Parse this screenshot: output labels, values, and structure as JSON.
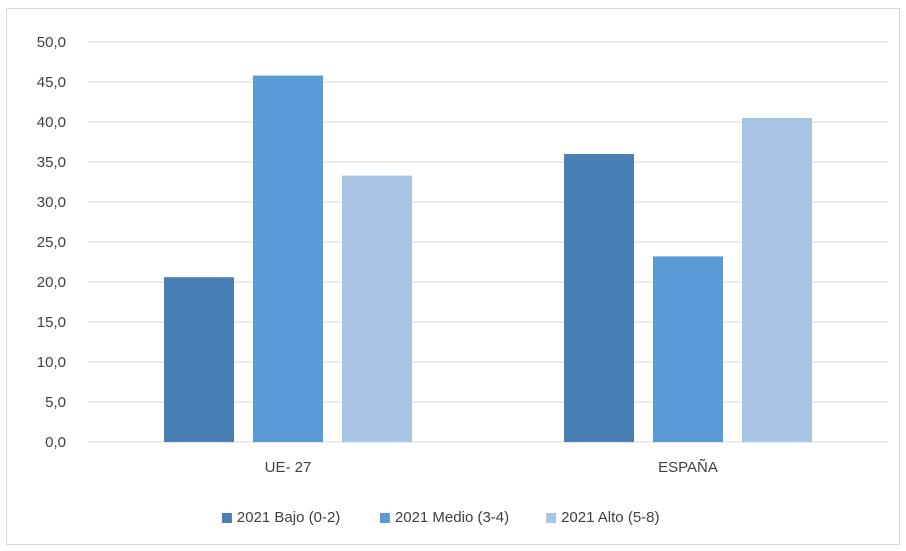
{
  "chart_data": {
    "type": "bar",
    "categories": [
      "UE- 27",
      "ESPAÑA"
    ],
    "series": [
      {
        "name": "2021 Bajo (0-2)",
        "values": [
          20.6,
          36.0
        ],
        "color": "#4a7fb5"
      },
      {
        "name": "2021 Medio (3-4)",
        "values": [
          45.8,
          23.2
        ],
        "color": "#5b9bd5"
      },
      {
        "name": "2021 Alto (5-8)",
        "values": [
          33.3,
          40.5
        ],
        "color": "#a9c4e4"
      }
    ],
    "ylim": [
      0,
      50
    ],
    "yticks": [
      "0,0",
      "5,0",
      "10,0",
      "15,0",
      "20,0",
      "25,0",
      "30,0",
      "35,0",
      "40,0",
      "45,0",
      "50,0"
    ],
    "grid": true,
    "legend_position": "bottom",
    "gridline_color": "#d9d9d9"
  }
}
